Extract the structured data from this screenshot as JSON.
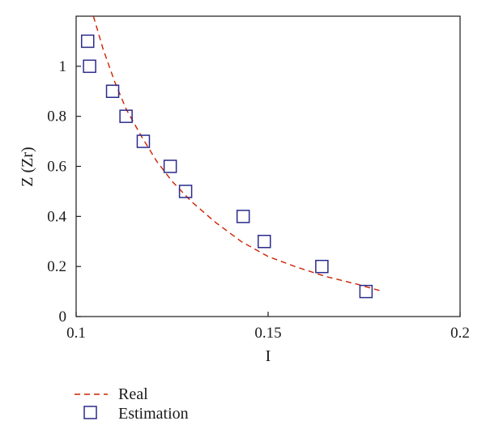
{
  "chart_data": {
    "type": "scatter",
    "xlabel": "I",
    "ylabel": "Z (Zr)",
    "xlim": [
      0.1,
      0.2
    ],
    "ylim": [
      0,
      1.2
    ],
    "x_ticks": [
      0.1,
      0.15,
      0.2
    ],
    "x_tick_labels": [
      "0.1",
      "0.15",
      "0.2"
    ],
    "y_ticks": [
      0,
      0.2,
      0.4,
      0.6,
      0.8,
      1
    ],
    "y_tick_labels": [
      "0",
      "0.2",
      "0.4",
      "0.6",
      "0.8",
      "1"
    ],
    "grid": false,
    "legend_position": "bottom-left, below plot",
    "series": [
      {
        "name": "Real",
        "style": "dashed-line",
        "color": "#cc2200",
        "points": [
          [
            0.1045,
            1.2
          ],
          [
            0.107,
            1.07
          ],
          [
            0.11,
            0.94
          ],
          [
            0.113,
            0.83
          ],
          [
            0.117,
            0.72
          ],
          [
            0.121,
            0.62
          ],
          [
            0.125,
            0.54
          ],
          [
            0.13,
            0.46
          ],
          [
            0.136,
            0.38
          ],
          [
            0.143,
            0.3
          ],
          [
            0.15,
            0.24
          ],
          [
            0.157,
            0.2
          ],
          [
            0.165,
            0.16
          ],
          [
            0.173,
            0.13
          ],
          [
            0.18,
            0.1
          ]
        ]
      },
      {
        "name": "Estimation",
        "style": "hollow-square-marker",
        "color": "#2a2a8c",
        "points": [
          [
            0.103,
            1.1
          ],
          [
            0.1035,
            1.0
          ],
          [
            0.1095,
            0.9
          ],
          [
            0.113,
            0.8
          ],
          [
            0.1175,
            0.7
          ],
          [
            0.1245,
            0.6
          ],
          [
            0.1285,
            0.5
          ],
          [
            0.1435,
            0.4
          ],
          [
            0.149,
            0.3
          ],
          [
            0.164,
            0.2
          ],
          [
            0.1755,
            0.1
          ]
        ]
      }
    ]
  }
}
